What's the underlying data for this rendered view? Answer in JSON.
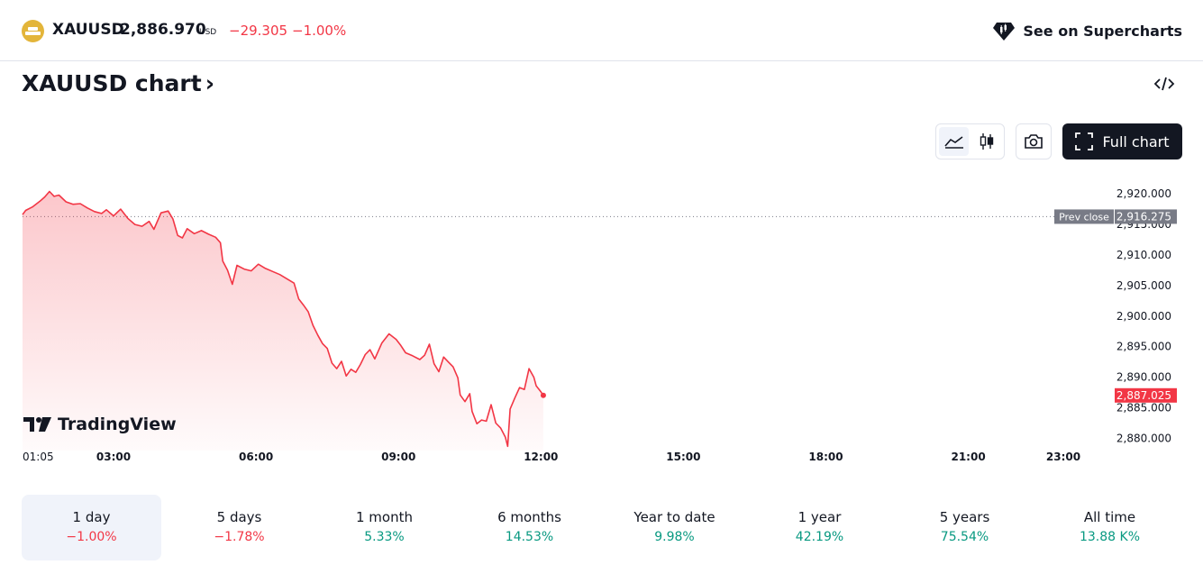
{
  "header": {
    "symbol": "XAUUSD",
    "price": "2,886.970",
    "currency": "USD",
    "change_abs": "−29.305",
    "change_pct": "−1.00%",
    "supercharts_label": "See on Supercharts",
    "supercharts_icon": "tradingview-gem-icon"
  },
  "title": {
    "label": "XAUUSD chart",
    "chevron": "›"
  },
  "toolbar": {
    "area_icon": "area-chart-icon",
    "candle_icon": "candlestick-icon",
    "camera_icon": "camera-icon",
    "full_chart_label": "Full chart",
    "embed_icon": "code-icon"
  },
  "chart_data": {
    "type": "area",
    "symbol": "XAUUSD",
    "x_axis": {
      "ticks": [
        "01:05",
        "03:00",
        "06:00",
        "09:00",
        "12:00",
        "15:00",
        "18:00",
        "21:00",
        "23:00"
      ],
      "tick_hours": [
        1.0833,
        3,
        6,
        9,
        12,
        15,
        18,
        21,
        23
      ],
      "range_hours": [
        1.0833,
        23
      ]
    },
    "y_axis": {
      "ticks": [
        "2,920.000",
        "2,915.000",
        "2,910.000",
        "2,905.000",
        "2,900.000",
        "2,895.000",
        "2,890.000",
        "2,885.000",
        "2,880.000"
      ],
      "tick_values": [
        2920,
        2915,
        2910,
        2905,
        2900,
        2895,
        2890,
        2885,
        2880
      ],
      "range": [
        2878,
        2921.5
      ]
    },
    "prev_close": {
      "label": "Prev close",
      "value": 2916.275,
      "value_label": "2,916.275"
    },
    "last_price": {
      "value": 2887.025,
      "value_label": "2,887.025"
    },
    "series": [
      {
        "color": "#f23645",
        "points": [
          [
            1.0833,
            2916.6
          ],
          [
            1.15,
            2917.3
          ],
          [
            1.3,
            2917.9
          ],
          [
            1.45,
            2918.8
          ],
          [
            1.55,
            2919.5
          ],
          [
            1.65,
            2920.4
          ],
          [
            1.75,
            2919.6
          ],
          [
            1.85,
            2919.8
          ],
          [
            2.0,
            2918.7
          ],
          [
            2.15,
            2918.3
          ],
          [
            2.3,
            2918.4
          ],
          [
            2.45,
            2917.7
          ],
          [
            2.6,
            2917.1
          ],
          [
            2.75,
            2916.8
          ],
          [
            2.85,
            2917.4
          ],
          [
            3.0,
            2916.4
          ],
          [
            3.15,
            2917.5
          ],
          [
            3.3,
            2916.0
          ],
          [
            3.45,
            2915.0
          ],
          [
            3.6,
            2914.7
          ],
          [
            3.75,
            2915.5
          ],
          [
            3.85,
            2914.2
          ],
          [
            4.0,
            2916.9
          ],
          [
            4.15,
            2917.2
          ],
          [
            4.25,
            2915.9
          ],
          [
            4.35,
            2913.2
          ],
          [
            4.45,
            2912.8
          ],
          [
            4.55,
            2914.3
          ],
          [
            4.7,
            2913.5
          ],
          [
            4.85,
            2914.0
          ],
          [
            5.0,
            2913.4
          ],
          [
            5.15,
            2912.9
          ],
          [
            5.25,
            2912.0
          ],
          [
            5.3,
            2909.0
          ],
          [
            5.4,
            2907.5
          ],
          [
            5.5,
            2905.2
          ],
          [
            5.6,
            2908.3
          ],
          [
            5.75,
            2907.7
          ],
          [
            5.9,
            2907.4
          ],
          [
            6.05,
            2908.5
          ],
          [
            6.2,
            2907.8
          ],
          [
            6.35,
            2907.3
          ],
          [
            6.5,
            2906.8
          ],
          [
            6.65,
            2906.1
          ],
          [
            6.8,
            2905.4
          ],
          [
            6.9,
            2902.8
          ],
          [
            7.0,
            2901.8
          ],
          [
            7.1,
            2900.7
          ],
          [
            7.2,
            2898.5
          ],
          [
            7.3,
            2896.9
          ],
          [
            7.4,
            2895.5
          ],
          [
            7.5,
            2894.7
          ],
          [
            7.6,
            2892.3
          ],
          [
            7.7,
            2891.4
          ],
          [
            7.8,
            2892.6
          ],
          [
            7.9,
            2890.2
          ],
          [
            8.0,
            2891.3
          ],
          [
            8.1,
            2890.8
          ],
          [
            8.2,
            2892.1
          ],
          [
            8.3,
            2893.7
          ],
          [
            8.4,
            2894.5
          ],
          [
            8.5,
            2893.0
          ],
          [
            8.65,
            2895.6
          ],
          [
            8.8,
            2897.1
          ],
          [
            8.95,
            2896.2
          ],
          [
            9.05,
            2895.2
          ],
          [
            9.15,
            2894.0
          ],
          [
            9.3,
            2893.5
          ],
          [
            9.45,
            2892.9
          ],
          [
            9.55,
            2893.6
          ],
          [
            9.65,
            2895.4
          ],
          [
            9.75,
            2892.2
          ],
          [
            9.85,
            2890.9
          ],
          [
            9.95,
            2893.3
          ],
          [
            10.05,
            2892.5
          ],
          [
            10.15,
            2891.7
          ],
          [
            10.25,
            2889.9
          ],
          [
            10.3,
            2887.1
          ],
          [
            10.4,
            2886.0
          ],
          [
            10.5,
            2887.3
          ],
          [
            10.55,
            2884.4
          ],
          [
            10.65,
            2882.4
          ],
          [
            10.75,
            2883.0
          ],
          [
            10.85,
            2882.8
          ],
          [
            10.95,
            2885.5
          ],
          [
            11.05,
            2882.5
          ],
          [
            11.15,
            2881.7
          ],
          [
            11.25,
            2880.2
          ],
          [
            11.3,
            2878.7
          ],
          [
            11.35,
            2884.8
          ],
          [
            11.45,
            2886.6
          ],
          [
            11.55,
            2888.3
          ],
          [
            11.65,
            2888.0
          ],
          [
            11.75,
            2891.4
          ],
          [
            11.85,
            2890.0
          ],
          [
            11.9,
            2888.6
          ],
          [
            12.0,
            2887.6
          ],
          [
            12.05,
            2887.025
          ]
        ]
      }
    ],
    "grid": false,
    "legend": "none"
  },
  "branding": {
    "logo_icon": "tradingview-logo-icon",
    "label": "TradingView"
  },
  "periods": [
    {
      "label": "1 day",
      "value": "−1.00%",
      "trend": "neg"
    },
    {
      "label": "5 days",
      "value": "−1.78%",
      "trend": "neg"
    },
    {
      "label": "1 month",
      "value": "5.33%",
      "trend": "pos"
    },
    {
      "label": "6 months",
      "value": "14.53%",
      "trend": "pos"
    },
    {
      "label": "Year to date",
      "value": "9.98%",
      "trend": "pos"
    },
    {
      "label": "1 year",
      "value": "42.19%",
      "trend": "pos"
    },
    {
      "label": "5 years",
      "value": "75.54%",
      "trend": "pos"
    },
    {
      "label": "All time",
      "value": "13.88 K%",
      "trend": "pos"
    }
  ],
  "colors": {
    "negative": "#f23645",
    "positive": "#089981",
    "text": "#131722",
    "prev_close_tag": "#787b86"
  }
}
